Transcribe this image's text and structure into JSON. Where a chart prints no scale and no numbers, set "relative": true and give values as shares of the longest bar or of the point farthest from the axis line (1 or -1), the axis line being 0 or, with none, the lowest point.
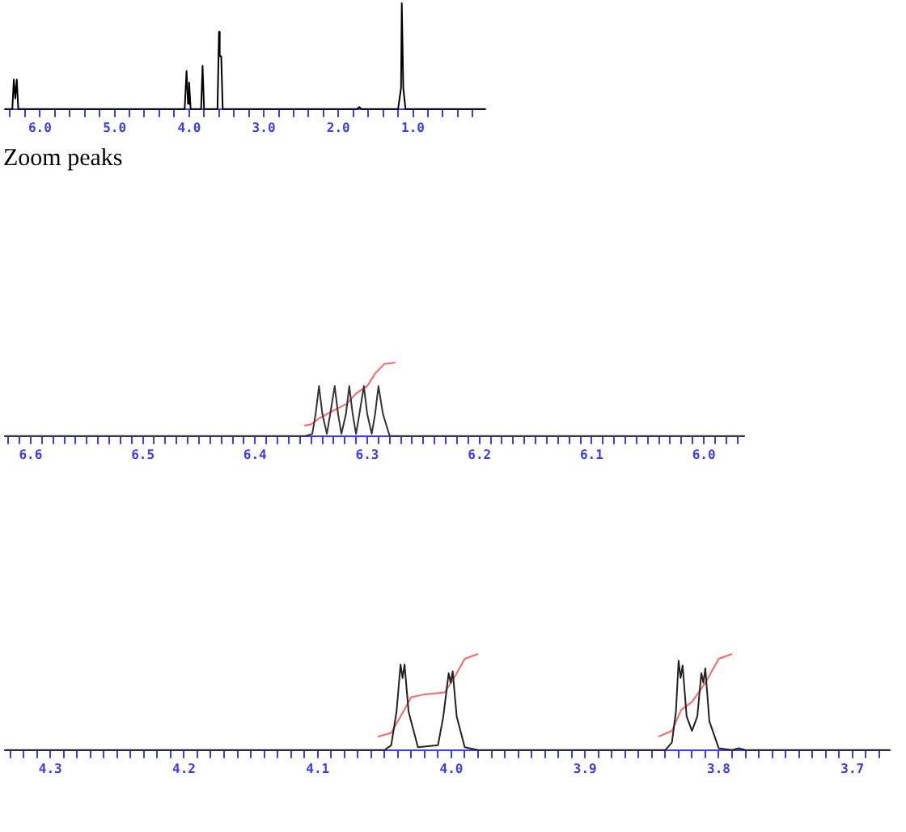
{
  "chart_data": [
    {
      "type": "line",
      "relative": true,
      "grid": false,
      "legend": false,
      "xlim": [
        6.47,
        0.03
      ],
      "xticks": [
        {
          "value": 6.4,
          "label": null
        },
        {
          "value": 6.2,
          "label": null
        },
        {
          "value": 6,
          "label": "6.0"
        },
        {
          "value": 5.8,
          "label": null
        },
        {
          "value": 5.6,
          "label": null
        },
        {
          "value": 5.4,
          "label": null
        },
        {
          "value": 5.2,
          "label": null
        },
        {
          "value": 5,
          "label": "5.0"
        },
        {
          "value": 4.8,
          "label": null
        },
        {
          "value": 4.6,
          "label": null
        },
        {
          "value": 4.4,
          "label": null
        },
        {
          "value": 4.2,
          "label": null
        },
        {
          "value": 4,
          "label": "4.0"
        },
        {
          "value": 3.8,
          "label": null
        },
        {
          "value": 3.6,
          "label": null
        },
        {
          "value": 3.4,
          "label": null
        },
        {
          "value": 3.2,
          "label": null
        },
        {
          "value": 3,
          "label": "3.0"
        },
        {
          "value": 2.8,
          "label": null
        },
        {
          "value": 2.6,
          "label": null
        },
        {
          "value": 2.4,
          "label": null
        },
        {
          "value": 2.2,
          "label": null
        },
        {
          "value": 2,
          "label": "2.0"
        },
        {
          "value": 1.8,
          "label": null
        },
        {
          "value": 1.6,
          "label": null
        },
        {
          "value": 1.4,
          "label": null
        },
        {
          "value": 1.2,
          "label": null
        },
        {
          "value": 1,
          "label": "1.0"
        },
        {
          "value": 0.8,
          "label": null
        },
        {
          "value": 0.6,
          "label": null
        },
        {
          "value": 0.4,
          "label": null
        },
        {
          "value": 0.2,
          "label": null
        }
      ],
      "series": [
        {
          "color": "#000000",
          "x": [
            6.47,
            6.37,
            6.35,
            6.33,
            6.31,
            6.29,
            4.06,
            4.035,
            4.015,
            4.0,
            3.98,
            3.84,
            3.82,
            3.8,
            3.62,
            3.6,
            3.59,
            3.57,
            3.55,
            1.75,
            1.72,
            1.69,
            1.2,
            1.16,
            1.15,
            1.13,
            1.1,
            0.03
          ],
          "values": [
            0,
            0,
            0.28,
            0.1,
            0.28,
            0,
            0,
            0.36,
            0.05,
            0.25,
            0,
            0,
            0.41,
            0,
            0,
            0.73,
            0.5,
            0.5,
            0,
            0,
            0.02,
            0,
            0,
            0.2,
            1,
            0.2,
            0,
            0
          ]
        }
      ]
    },
    {
      "type": "line",
      "relative": true,
      "grid": false,
      "legend": false,
      "xlim": [
        6.623,
        5.964
      ],
      "annotations": [
        "Zoom peaks"
      ],
      "xticks": [
        {
          "value": 6.62,
          "label": null
        },
        {
          "value": 6.61,
          "label": null
        },
        {
          "value": 6.6,
          "label": "6.6"
        },
        {
          "value": 6.59,
          "label": null
        },
        {
          "value": 6.58,
          "label": null
        },
        {
          "value": 6.57,
          "label": null
        },
        {
          "value": 6.56,
          "label": null
        },
        {
          "value": 6.55,
          "label": null
        },
        {
          "value": 6.54,
          "label": null
        },
        {
          "value": 6.53,
          "label": null
        },
        {
          "value": 6.52,
          "label": null
        },
        {
          "value": 6.51,
          "label": null
        },
        {
          "value": 6.5,
          "label": "6.5"
        },
        {
          "value": 6.49,
          "label": null
        },
        {
          "value": 6.48,
          "label": null
        },
        {
          "value": 6.47,
          "label": null
        },
        {
          "value": 6.46,
          "label": null
        },
        {
          "value": 6.45,
          "label": null
        },
        {
          "value": 6.44,
          "label": null
        },
        {
          "value": 6.43,
          "label": null
        },
        {
          "value": 6.42,
          "label": null
        },
        {
          "value": 6.41,
          "label": null
        },
        {
          "value": 6.4,
          "label": "6.4"
        },
        {
          "value": 6.39,
          "label": null
        },
        {
          "value": 6.38,
          "label": null
        },
        {
          "value": 6.37,
          "label": null
        },
        {
          "value": 6.36,
          "label": null
        },
        {
          "value": 6.35,
          "label": null
        },
        {
          "value": 6.34,
          "label": null
        },
        {
          "value": 6.33,
          "label": null
        },
        {
          "value": 6.32,
          "label": null
        },
        {
          "value": 6.31,
          "label": null
        },
        {
          "value": 6.3,
          "label": "6.3"
        },
        {
          "value": 6.29,
          "label": null
        },
        {
          "value": 6.28,
          "label": null
        },
        {
          "value": 6.27,
          "label": null
        },
        {
          "value": 6.26,
          "label": null
        },
        {
          "value": 6.25,
          "label": null
        },
        {
          "value": 6.24,
          "label": null
        },
        {
          "value": 6.23,
          "label": null
        },
        {
          "value": 6.22,
          "label": null
        },
        {
          "value": 6.21,
          "label": null
        },
        {
          "value": 6.2,
          "label": "6.2"
        },
        {
          "value": 6.19,
          "label": null
        },
        {
          "value": 6.18,
          "label": null
        },
        {
          "value": 6.17,
          "label": null
        },
        {
          "value": 6.16,
          "label": null
        },
        {
          "value": 6.15,
          "label": null
        },
        {
          "value": 6.14,
          "label": null
        },
        {
          "value": 6.13,
          "label": null
        },
        {
          "value": 6.12,
          "label": null
        },
        {
          "value": 6.11,
          "label": null
        },
        {
          "value": 6.1,
          "label": "6.1"
        },
        {
          "value": 6.09,
          "label": null
        },
        {
          "value": 6.08,
          "label": null
        },
        {
          "value": 6.07,
          "label": null
        },
        {
          "value": 6.06,
          "label": null
        },
        {
          "value": 6.05,
          "label": null
        },
        {
          "value": 6.04,
          "label": null
        },
        {
          "value": 6.03,
          "label": null
        },
        {
          "value": 6.02,
          "label": null
        },
        {
          "value": 6.01,
          "label": null
        },
        {
          "value": 6.0,
          "label": "6.0"
        },
        {
          "value": 5.99,
          "label": null
        },
        {
          "value": 5.98,
          "label": null
        },
        {
          "value": 5.97,
          "label": null
        }
      ],
      "series": [
        {
          "color": "#333333",
          "x": [
            6.623,
            6.355,
            6.349,
            6.346,
            6.343,
            6.34,
            6.336,
            6.333,
            6.329,
            6.326,
            6.323,
            6.319,
            6.316,
            6.313,
            6.31,
            6.307,
            6.303,
            6.3,
            6.296,
            6.293,
            6.29,
            6.286,
            6.28,
            5.964
          ],
          "values": [
            0,
            0,
            0.03,
            0.3,
            0.68,
            0.3,
            0.03,
            0.3,
            0.68,
            0.3,
            0.03,
            0.3,
            0.68,
            0.3,
            0.03,
            0.3,
            0.68,
            0.3,
            0.03,
            0.3,
            0.68,
            0.3,
            0,
            0
          ]
        },
        {
          "color": "#ff6666",
          "x": [
            6.356,
            6.35,
            6.343,
            6.336,
            6.326,
            6.318,
            6.31,
            6.3,
            6.293,
            6.285,
            6.275
          ],
          "values": [
            0.14,
            0.16,
            0.24,
            0.3,
            0.38,
            0.44,
            0.58,
            0.68,
            0.85,
            0.98,
            1
          ]
        }
      ]
    },
    {
      "type": "line",
      "relative": true,
      "grid": false,
      "legend": false,
      "xlim": [
        4.334,
        3.672
      ],
      "xticks": [
        {
          "value": 4.33,
          "label": null
        },
        {
          "value": 4.32,
          "label": null
        },
        {
          "value": 4.31,
          "label": null
        },
        {
          "value": 4.3,
          "label": "4.3"
        },
        {
          "value": 4.29,
          "label": null
        },
        {
          "value": 4.28,
          "label": null
        },
        {
          "value": 4.27,
          "label": null
        },
        {
          "value": 4.26,
          "label": null
        },
        {
          "value": 4.25,
          "label": null
        },
        {
          "value": 4.24,
          "label": null
        },
        {
          "value": 4.23,
          "label": null
        },
        {
          "value": 4.22,
          "label": null
        },
        {
          "value": 4.21,
          "label": null
        },
        {
          "value": 4.2,
          "label": "4.2"
        },
        {
          "value": 4.19,
          "label": null
        },
        {
          "value": 4.18,
          "label": null
        },
        {
          "value": 4.17,
          "label": null
        },
        {
          "value": 4.16,
          "label": null
        },
        {
          "value": 4.15,
          "label": null
        },
        {
          "value": 4.14,
          "label": null
        },
        {
          "value": 4.13,
          "label": null
        },
        {
          "value": 4.12,
          "label": null
        },
        {
          "value": 4.11,
          "label": null
        },
        {
          "value": 4.1,
          "label": "4.1"
        },
        {
          "value": 4.09,
          "label": null
        },
        {
          "value": 4.08,
          "label": null
        },
        {
          "value": 4.07,
          "label": null
        },
        {
          "value": 4.06,
          "label": null
        },
        {
          "value": 4.05,
          "label": null
        },
        {
          "value": 4.04,
          "label": null
        },
        {
          "value": 4.03,
          "label": null
        },
        {
          "value": 4.02,
          "label": null
        },
        {
          "value": 4.01,
          "label": null
        },
        {
          "value": 4.0,
          "label": "4.0"
        },
        {
          "value": 3.99,
          "label": null
        },
        {
          "value": 3.98,
          "label": null
        },
        {
          "value": 3.97,
          "label": null
        },
        {
          "value": 3.96,
          "label": null
        },
        {
          "value": 3.95,
          "label": null
        },
        {
          "value": 3.94,
          "label": null
        },
        {
          "value": 3.93,
          "label": null
        },
        {
          "value": 3.92,
          "label": null
        },
        {
          "value": 3.91,
          "label": null
        },
        {
          "value": 3.9,
          "label": "3.9"
        },
        {
          "value": 3.89,
          "label": null
        },
        {
          "value": 3.88,
          "label": null
        },
        {
          "value": 3.87,
          "label": null
        },
        {
          "value": 3.86,
          "label": null
        },
        {
          "value": 3.85,
          "label": null
        },
        {
          "value": 3.84,
          "label": null
        },
        {
          "value": 3.83,
          "label": null
        },
        {
          "value": 3.82,
          "label": null
        },
        {
          "value": 3.81,
          "label": null
        },
        {
          "value": 3.8,
          "label": "3.8"
        },
        {
          "value": 3.79,
          "label": null
        },
        {
          "value": 3.78,
          "label": null
        },
        {
          "value": 3.77,
          "label": null
        },
        {
          "value": 3.76,
          "label": null
        },
        {
          "value": 3.75,
          "label": null
        },
        {
          "value": 3.74,
          "label": null
        },
        {
          "value": 3.73,
          "label": null
        },
        {
          "value": 3.72,
          "label": null
        },
        {
          "value": 3.71,
          "label": null
        },
        {
          "value": 3.7,
          "label": "3.7"
        },
        {
          "value": 3.69,
          "label": null
        },
        {
          "value": 3.68,
          "label": null
        }
      ],
      "series": [
        {
          "color": "#222222",
          "x": [
            4.334,
            4.05,
            4.045,
            4.041,
            4.038,
            4.0365,
            4.035,
            4.032,
            4.025,
            4.01,
            4.006,
            4.002,
            4.0005,
            3.999,
            3.996,
            3.99,
            3.98,
            3.84,
            3.835,
            3.832,
            3.83,
            3.8285,
            3.827,
            3.824,
            3.82,
            3.816,
            3.813,
            3.8115,
            3.81,
            3.807,
            3.8,
            3.79,
            3.785,
            3.78,
            3.672
          ],
          "values": [
            0,
            0,
            0.05,
            0.4,
            0.89,
            0.75,
            0.89,
            0.4,
            0.03,
            0.05,
            0.35,
            0.8,
            0.7,
            0.82,
            0.35,
            0.03,
            0,
            0,
            0.08,
            0.4,
            0.93,
            0.75,
            0.88,
            0.35,
            0.2,
            0.35,
            0.8,
            0.7,
            0.85,
            0.3,
            0.02,
            0,
            0.02,
            0,
            0
          ]
        },
        {
          "color": "#ff6666",
          "x": [
            4.055,
            4.045,
            4.038,
            4.03,
            4.02,
            4.005,
            3.998,
            3.99,
            3.98
          ],
          "values": [
            0.14,
            0.18,
            0.35,
            0.55,
            0.58,
            0.6,
            0.75,
            0.95,
            1
          ]
        },
        {
          "color": "#ff6666",
          "x": [
            3.845,
            3.835,
            3.828,
            3.82,
            3.81,
            3.8,
            3.79
          ],
          "values": [
            0.14,
            0.2,
            0.42,
            0.5,
            0.7,
            0.95,
            1
          ]
        }
      ]
    }
  ]
}
